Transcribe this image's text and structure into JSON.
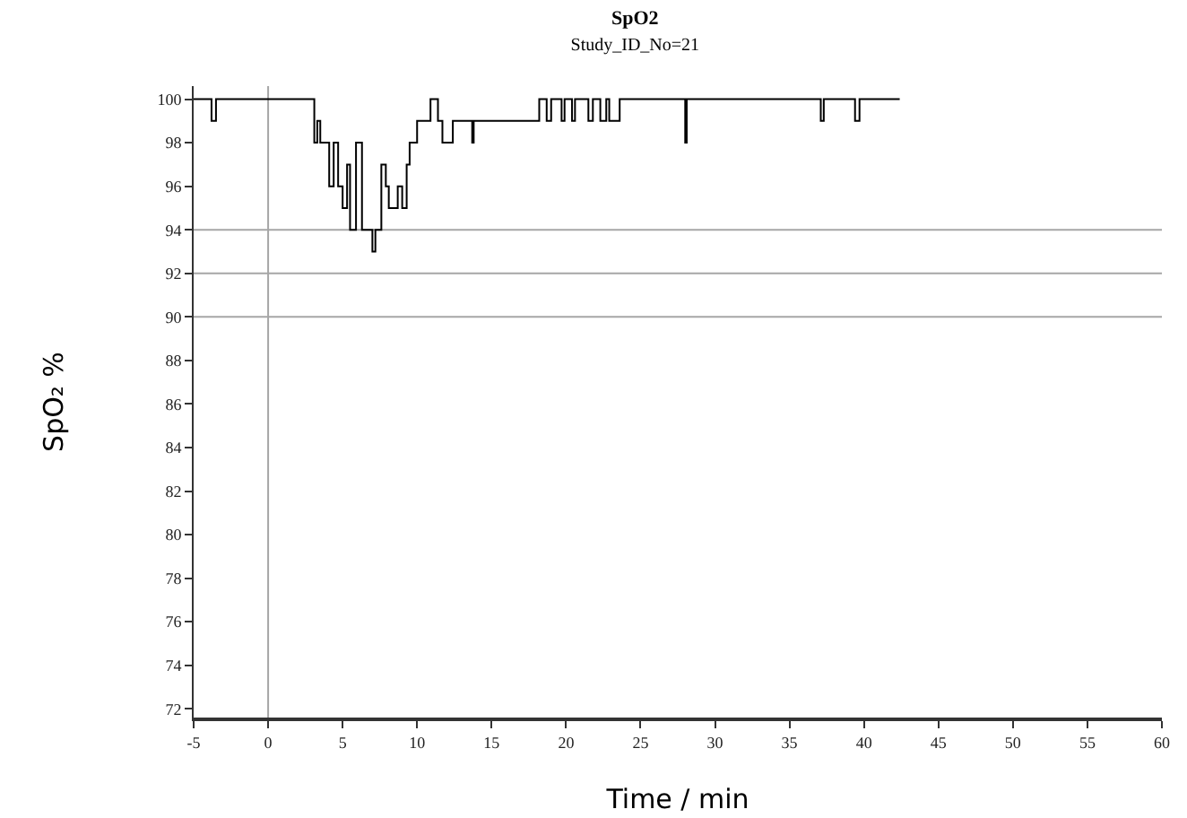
{
  "chart_data": {
    "type": "step",
    "title": "SpO2",
    "subtitle": "Study_ID_No=21",
    "xlabel": "Time / min",
    "ylabel": "SpO₂ %",
    "x": [
      -5,
      -3.8,
      -3.5,
      3.1,
      3.3,
      3.5,
      4.1,
      4.4,
      4.7,
      5.0,
      5.3,
      5.5,
      5.9,
      6.3,
      7.0,
      7.2,
      7.6,
      7.9,
      8.1,
      8.7,
      9.0,
      9.3,
      9.5,
      10.0,
      10.9,
      11.4,
      11.7,
      12.4,
      13.7,
      13.8,
      18.2,
      18.7,
      19.0,
      19.7,
      19.9,
      20.4,
      20.6,
      21.5,
      21.8,
      22.3,
      22.7,
      22.9,
      23.6,
      28.0,
      28.1,
      37.1,
      37.3,
      39.4,
      39.7,
      42.4
    ],
    "series": [
      {
        "color": "#000000",
        "values": [
          100,
          99,
          100,
          98,
          99,
          98,
          96,
          98,
          96,
          95,
          97,
          94,
          98,
          94,
          93,
          94,
          97,
          96,
          95,
          96,
          95,
          97,
          98,
          99,
          100,
          99,
          98,
          99,
          98,
          99,
          100,
          99,
          100,
          99,
          100,
          99,
          100,
          99,
          100,
          99,
          100,
          99,
          100,
          98,
          100,
          99,
          100,
          99,
          100,
          100
        ]
      }
    ],
    "xlim": [
      -5,
      60
    ],
    "xticks": [
      -5,
      0,
      5,
      10,
      15,
      20,
      25,
      30,
      35,
      40,
      45,
      50,
      55,
      60
    ],
    "ylim": [
      71.6,
      100.6
    ],
    "yticks": [
      72,
      74,
      76,
      78,
      80,
      82,
      84,
      86,
      88,
      90,
      92,
      94,
      96,
      98,
      100
    ],
    "ref_lines": [
      {
        "axis": "y",
        "value": 94,
        "color": "#a6a6a6"
      },
      {
        "axis": "y",
        "value": 92,
        "color": "#a6a6a6"
      },
      {
        "axis": "y",
        "value": 90,
        "color": "#a6a6a6"
      },
      {
        "axis": "x",
        "value": 0,
        "color": "#a6a6a6"
      }
    ],
    "grid": false,
    "marker": "none",
    "line_style": "solid"
  }
}
